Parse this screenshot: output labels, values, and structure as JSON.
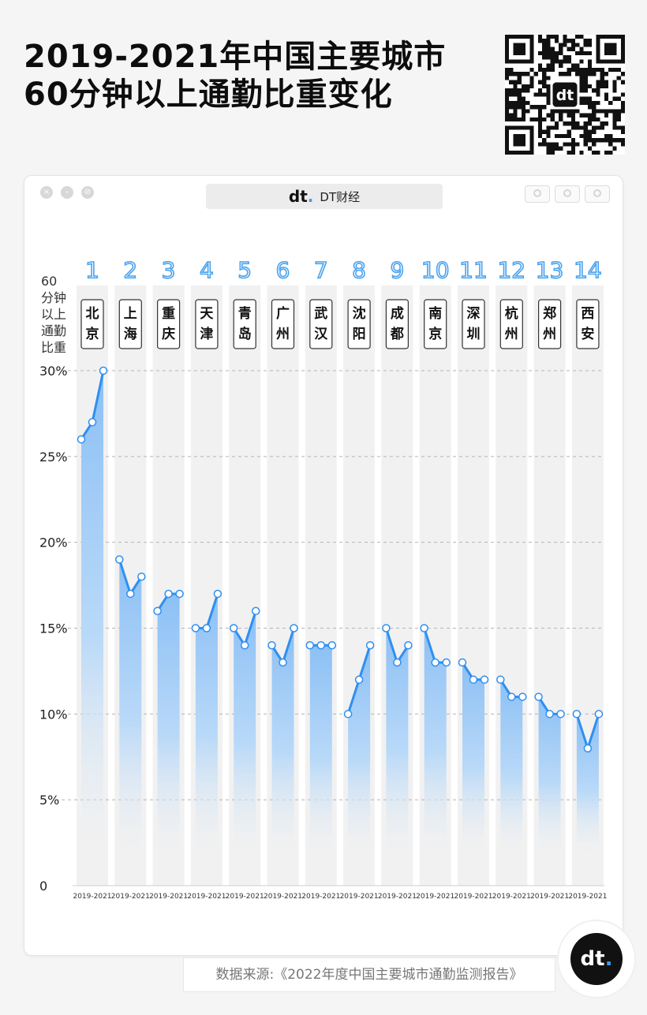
{
  "header": {
    "title_line1": "2019-2021年中国主要城市",
    "title_line2": "60分钟以上通勤比重变化"
  },
  "window": {
    "brand": "DT财经",
    "brand_mark": "dt"
  },
  "footer": {
    "source": "数据来源:《2022年度中国主要城市通勤监测报告》"
  },
  "colors": {
    "accent": "#2f8ff0",
    "bar_top": "#8cc0f5",
    "column_bg": "#f1f1f1",
    "rank": "#4aa3ee"
  },
  "chart_data": {
    "type": "line",
    "ylabel": "60分钟以上通勤比重",
    "y_ticks": [
      "0",
      "5%",
      "10%",
      "15%",
      "20%",
      "25%",
      "30%"
    ],
    "y_tick_values": [
      0,
      5,
      10,
      15,
      20,
      25,
      30
    ],
    "ylim": [
      0,
      30
    ],
    "grid": true,
    "x_period_label": "2019-2021",
    "x_years": [
      2019,
      2020,
      2021
    ],
    "cities": [
      {
        "rank": "1",
        "name": "北京",
        "values": [
          26,
          27,
          30
        ]
      },
      {
        "rank": "2",
        "name": "上海",
        "values": [
          19,
          17,
          18
        ]
      },
      {
        "rank": "3",
        "name": "重庆",
        "values": [
          16,
          17,
          17
        ]
      },
      {
        "rank": "4",
        "name": "天津",
        "values": [
          15,
          15,
          17
        ]
      },
      {
        "rank": "5",
        "name": "青岛",
        "values": [
          15,
          14,
          16
        ]
      },
      {
        "rank": "6",
        "name": "广州",
        "values": [
          14,
          13,
          15
        ]
      },
      {
        "rank": "7",
        "name": "武汉",
        "values": [
          14,
          14,
          14
        ]
      },
      {
        "rank": "8",
        "name": "沈阳",
        "values": [
          10,
          12,
          14
        ]
      },
      {
        "rank": "9",
        "name": "成都",
        "values": [
          15,
          13,
          14
        ]
      },
      {
        "rank": "10",
        "name": "南京",
        "values": [
          15,
          13,
          13
        ]
      },
      {
        "rank": "11",
        "name": "深圳",
        "values": [
          13,
          12,
          12
        ]
      },
      {
        "rank": "12",
        "name": "杭州",
        "values": [
          12,
          11,
          11
        ]
      },
      {
        "rank": "13",
        "name": "郑州",
        "values": [
          11,
          10,
          10
        ]
      },
      {
        "rank": "14",
        "name": "西安",
        "values": [
          10,
          8,
          10
        ]
      }
    ]
  }
}
